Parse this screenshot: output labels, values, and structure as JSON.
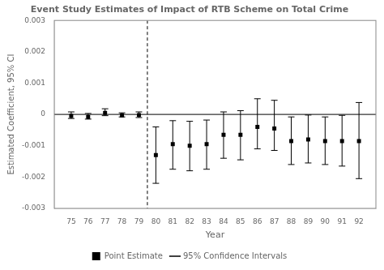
{
  "chart_data": {
    "type": "scatter",
    "title": "Event Study Estimates of Impact of RTB Scheme on Total Crime",
    "x_label": "Year",
    "y_label": "Estimated Coefficient, 95% CI",
    "x": [
      75,
      76,
      77,
      78,
      79,
      80,
      81,
      82,
      83,
      84,
      85,
      86,
      87,
      88,
      89,
      90,
      91,
      92
    ],
    "series": [
      {
        "name": "Point Estimate",
        "color": "#000000",
        "marker": "square",
        "values": [
          -5e-05,
          -8e-05,
          5e-05,
          -3e-05,
          -2e-05,
          -0.0013,
          -0.00095,
          -0.001,
          -0.00095,
          -0.00065,
          -0.00065,
          -0.0004,
          -0.00045,
          -0.00085,
          -0.0008,
          -0.00085,
          -0.00085,
          -0.00085
        ]
      },
      {
        "name": "95% Confidence Intervals",
        "color": "#000000",
        "type": "errorbar",
        "lower": [
          -0.00013,
          -0.00015,
          -4e-05,
          -8e-05,
          -0.0001,
          -0.0022,
          -0.00175,
          -0.0018,
          -0.00175,
          -0.0014,
          -0.00145,
          -0.0011,
          -0.00115,
          -0.0016,
          -0.00155,
          -0.0016,
          -0.00165,
          -0.00205
        ],
        "upper": [
          8e-05,
          3e-05,
          0.00018,
          5e-05,
          8e-05,
          -0.0004,
          -0.0002,
          -0.00022,
          -0.00018,
          8e-05,
          0.00012,
          0.0005,
          0.00045,
          -8e-05,
          -2e-05,
          -8e-05,
          -3e-05,
          0.00038
        ]
      }
    ],
    "reference_lines": [
      {
        "axis": "y",
        "value": 0,
        "color": "#000000"
      },
      {
        "axis": "x",
        "value": 79.5,
        "color": "#000000",
        "line_style": "dashed"
      }
    ],
    "xlim": [
      74.0,
      93.0
    ],
    "xticks": [
      75,
      76,
      77,
      78,
      79,
      80,
      81,
      82,
      83,
      84,
      85,
      86,
      87,
      88,
      89,
      90,
      91,
      92
    ],
    "ylim": [
      -0.003,
      0.003
    ],
    "yticks": [
      -0.003,
      -0.002,
      -0.001,
      0,
      0.001,
      0.002,
      0.003
    ],
    "grid": false,
    "legend": "bottom"
  }
}
